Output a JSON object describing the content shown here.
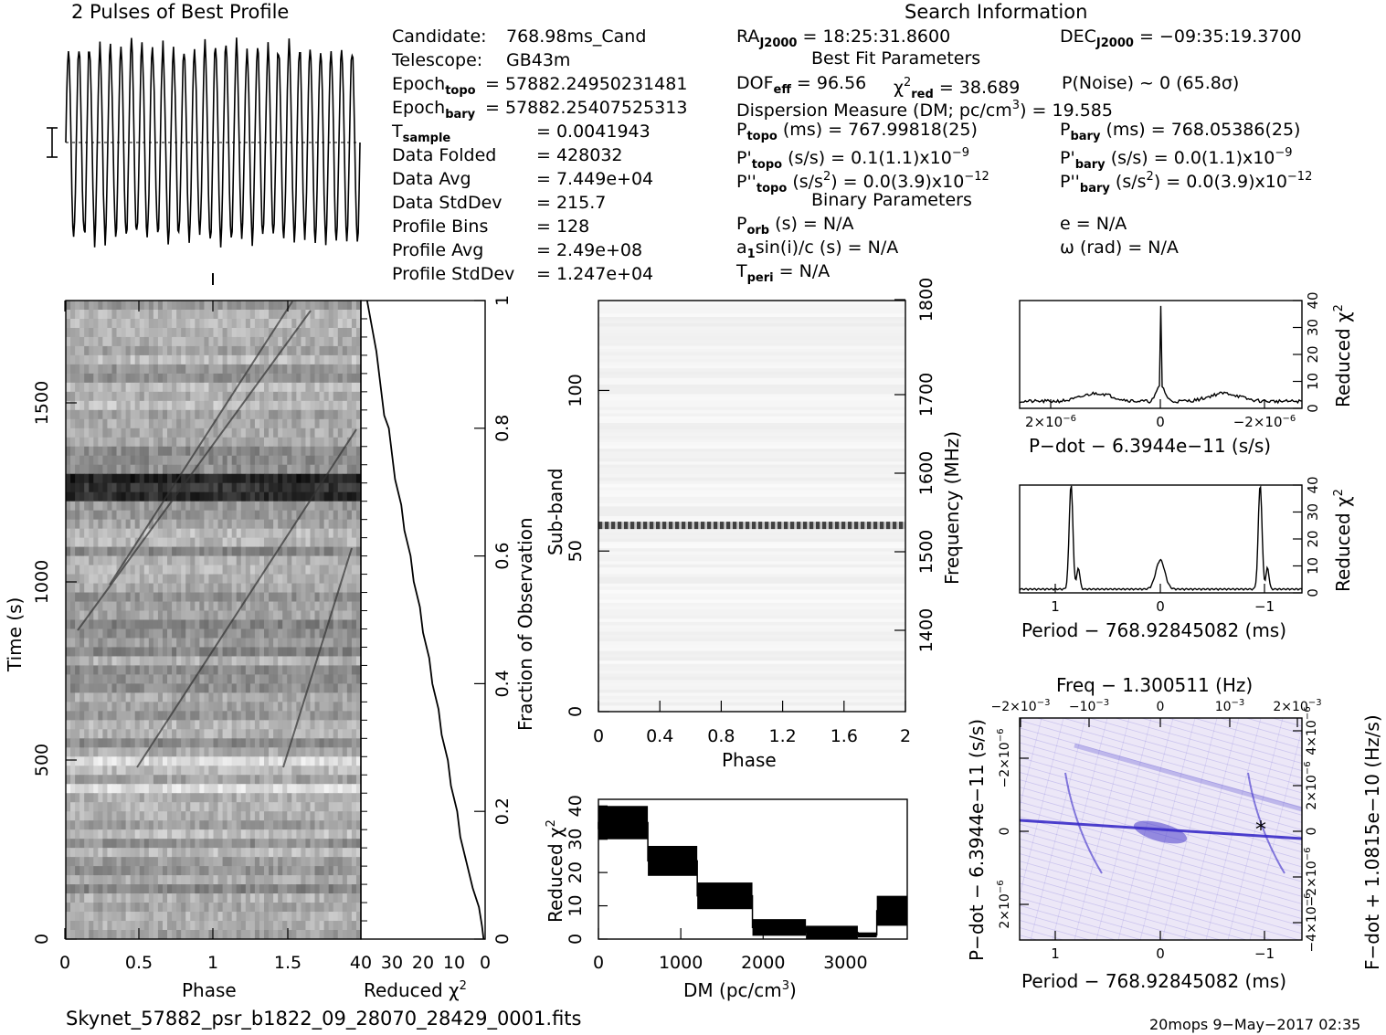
{
  "header": {
    "profile_title": "2 Pulses of Best Profile",
    "search_title": "Search Information"
  },
  "left_info": [
    {
      "label": "Candidate:",
      "value": "768.98ms_Cand"
    },
    {
      "label": "Telescope:",
      "value": "GB43m"
    },
    {
      "label": "Epoch",
      "sub": "topo",
      "value": "= 57882.24950231481"
    },
    {
      "label": "Epoch",
      "sub": "bary",
      "value": "= 57882.25407525313"
    },
    {
      "label": "T",
      "sub": "sample",
      "value": "=   0.0041943"
    },
    {
      "label": "Data Folded",
      "value": "=   428032"
    },
    {
      "label": "Data Avg",
      "value": "=   7.449e+04"
    },
    {
      "label": "Data StdDev",
      "value": "=   215.7"
    },
    {
      "label": "Profile Bins",
      "value": "=   128"
    },
    {
      "label": "Profile Avg",
      "value": "=   2.49e+08"
    },
    {
      "label": "Profile StdDev",
      "value": "=   1.247e+04"
    }
  ],
  "mid_info": {
    "ra": "RA",
    "ra_sub": "J2000",
    "ra_val": " = 18:25:31.8600",
    "dec": "DEC",
    "dec_sub": "J2000",
    "dec_val": " = −09:35:19.3700",
    "best_fit": "Best Fit Parameters",
    "dof": "DOF",
    "dof_sub": "eff",
    "dof_val": " = 96.56",
    "chi": "χ",
    "chi_sup": "2",
    "chi_sub": "red",
    "chi_val": " = 38.689",
    "pnoise": "P(Noise) ~ 0    (65.8σ)",
    "dm_line": "Dispersion Measure (DM; pc/cm",
    "dm_sup": "3",
    "dm_val": ") = 19.585",
    "ptopo": "P",
    "ptopo_sub": "topo",
    "ptopo_val": " (ms) =  767.99818(25)",
    "pbary": "P",
    "pbary_sub": "bary",
    "pbary_val": " (ms) =  768.05386(25)",
    "pdtopo": "P'",
    "pdtopo_sub": "topo",
    "pdtopo_val": " (s/s) =  0.1(1.1)x10",
    "pdtopo_exp": "−9",
    "pdbary": "P'",
    "pdbary_sub": "bary",
    "pdbary_val": " (s/s) = 0.0(1.1)x10",
    "pdbary_exp": "−9",
    "pddtopo": "P''",
    "pddtopo_sub": "topo",
    "pddtopo_val": " (s/s",
    "pddtopo_val2": ") = 0.0(3.9)x10",
    "pddtopo_exp": "−12",
    "pddbary": "P''",
    "pddbary_sub": "bary",
    "pddbary_val": " (s/s",
    "pddbary_val2": ") = 0.0(3.9)x10",
    "pddbary_exp": "−12",
    "binary": "Binary Parameters",
    "porb": "P",
    "porb_sub": "orb",
    "porb_val": " (s) = N/A",
    "ecc": "e = N/A",
    "asini": "a",
    "asini_sub": "1",
    "asini_val": "sin(i)/c (s) = N/A",
    "omega": "ω (rad) = N/A",
    "tperi": "T",
    "tperi_sub": "peri",
    "tperi_val": " = N/A",
    "sq2": "2",
    "sq2b": "2"
  },
  "footer": {
    "filename": "Skynet_57882_psr_b1822_09_28070_28429_0001.fits",
    "stamp": "20mops  9−May−2017 02:35"
  },
  "colors": {
    "ink": "#000000",
    "contour": "#3a2cc8",
    "contour_light": "#d8cff0"
  },
  "chart_data": [
    {
      "type": "line",
      "title": "2 Pulses of Best Profile",
      "x": "Phase 0–2",
      "pulses": 28,
      "note_y": "profile"
    },
    {
      "type": "heatmap",
      "name": "time-phase",
      "xlabel": "Phase",
      "ylabel": "Time (s)",
      "xticks": [
        "0",
        "0.5",
        "1",
        "1.5"
      ],
      "yticks": [
        "0",
        "500",
        "1000",
        "1500"
      ],
      "xlim": [
        0,
        2
      ],
      "ylim": [
        0,
        1790
      ]
    },
    {
      "type": "line",
      "name": "reduced-chi2-vs-fraction",
      "xlabel": "Reduced χ",
      "xlabel_sup": "2",
      "ylabel": "Fraction of Observation",
      "xticks": [
        "40",
        "30",
        "20",
        "10",
        "0"
      ],
      "yticks": [
        "0",
        "0.2",
        "0.4",
        "0.6",
        "0.8",
        "1"
      ],
      "xlim": [
        40,
        0
      ],
      "ylim": [
        0,
        1
      ],
      "points": [
        [
          0.5,
          0
        ],
        [
          1,
          0.02
        ],
        [
          2,
          0.05
        ],
        [
          4,
          0.08
        ],
        [
          6,
          0.12
        ],
        [
          8,
          0.16
        ],
        [
          9,
          0.2
        ],
        [
          11,
          0.24
        ],
        [
          12,
          0.28
        ],
        [
          14,
          0.32
        ],
        [
          15,
          0.36
        ],
        [
          17,
          0.4
        ],
        [
          18,
          0.44
        ],
        [
          20,
          0.48
        ],
        [
          21,
          0.52
        ],
        [
          23,
          0.56
        ],
        [
          24,
          0.6
        ],
        [
          26,
          0.64
        ],
        [
          27,
          0.68
        ],
        [
          29,
          0.72
        ],
        [
          30,
          0.76
        ],
        [
          31,
          0.8
        ],
        [
          32.5,
          0.82
        ],
        [
          33,
          0.84
        ],
        [
          34,
          0.88
        ],
        [
          35,
          0.92
        ],
        [
          36.5,
          0.96
        ],
        [
          38,
          1
        ]
      ]
    },
    {
      "type": "heatmap",
      "name": "subband-phase",
      "xlabel": "Phase",
      "ylabel": "Sub-band",
      "ylabel2": "Frequency (MHz)",
      "xticks": [
        "0",
        "0.4",
        "0.8",
        "1.2",
        "1.6",
        "2"
      ],
      "yticks": [
        "0",
        "50",
        "100"
      ],
      "yticks2": [
        "1400",
        "1500",
        "1600",
        "1700",
        "1800"
      ],
      "xlim": [
        0,
        2
      ],
      "ylim": [
        0,
        128
      ],
      "bright_subband": 58
    },
    {
      "type": "bar",
      "name": "reduced-chi2-vs-dm",
      "xlabel": "DM (pc/cm",
      "xlabel_sup": "3",
      "xlabel_end": ")",
      "ylabel": "Reduced χ",
      "ylabel_sup": "2",
      "xticks": [
        "0",
        "1000",
        "2000",
        "3000"
      ],
      "yticks": [
        "0",
        "10",
        "20",
        "30",
        "40"
      ],
      "xlim": [
        0,
        3750
      ],
      "ylim": [
        0,
        42
      ],
      "blocks": [
        {
          "x0": 0,
          "x1": 600,
          "lo": 30,
          "hi": 40
        },
        {
          "x0": 600,
          "x1": 1200,
          "lo": 19,
          "hi": 28
        },
        {
          "x0": 1200,
          "x1": 1870,
          "lo": 9,
          "hi": 17
        },
        {
          "x0": 1870,
          "x1": 2520,
          "lo": 1,
          "hi": 6
        },
        {
          "x0": 2520,
          "x1": 3150,
          "lo": 0,
          "hi": 4
        },
        {
          "x0": 3150,
          "x1": 3380,
          "lo": 0.5,
          "hi": 2
        },
        {
          "x0": 3380,
          "x1": 3750,
          "lo": 4,
          "hi": 13
        }
      ]
    },
    {
      "type": "line",
      "name": "pdot-chi2",
      "xlabel": "P−dot − 6.3944e−11 (s/s)",
      "ylabel": "Reduced χ",
      "ylabel_sup": "2",
      "xticks": [
        "2×10",
        "0",
        "−2×10"
      ],
      "xtick_exp": "−6",
      "yticks": [
        "0",
        "10",
        "20",
        "30",
        "40"
      ],
      "ylim": [
        0,
        40
      ],
      "peak": 38
    },
    {
      "type": "line",
      "name": "period-chi2",
      "xlabel": "Period − 768.92845082 (ms)",
      "ylabel": "Reduced χ",
      "ylabel_sup": "2",
      "xticks": [
        "1",
        "0",
        "−1"
      ],
      "yticks": [
        "0",
        "10",
        "20",
        "30",
        "40"
      ],
      "ylim": [
        0,
        40
      ],
      "peaks": [
        39,
        12,
        39
      ]
    },
    {
      "type": "heatmap",
      "name": "period-pdot",
      "title": "Freq − 1.300511 (Hz)",
      "xlabel": "Period − 768.92845082 (ms)",
      "ylabel": "P−dot − 6.3944e−11 (s/s)",
      "ylabel2": "F−dot + 1.0815e−10 (Hz/s)",
      "xticks": [
        "1",
        "0",
        "−1"
      ],
      "xticks_top": [
        "−2×10",
        "−10",
        "0",
        "10",
        "2×10"
      ],
      "xtick_top_exp": "−3",
      "yticks": [
        "−2×10",
        "0",
        "2×10"
      ],
      "ytick_exp": "−6",
      "yticks2": [
        "4×10",
        "2×10",
        "0",
        "−2×10",
        "−4×10"
      ],
      "ytick2_exp": "−6"
    }
  ]
}
